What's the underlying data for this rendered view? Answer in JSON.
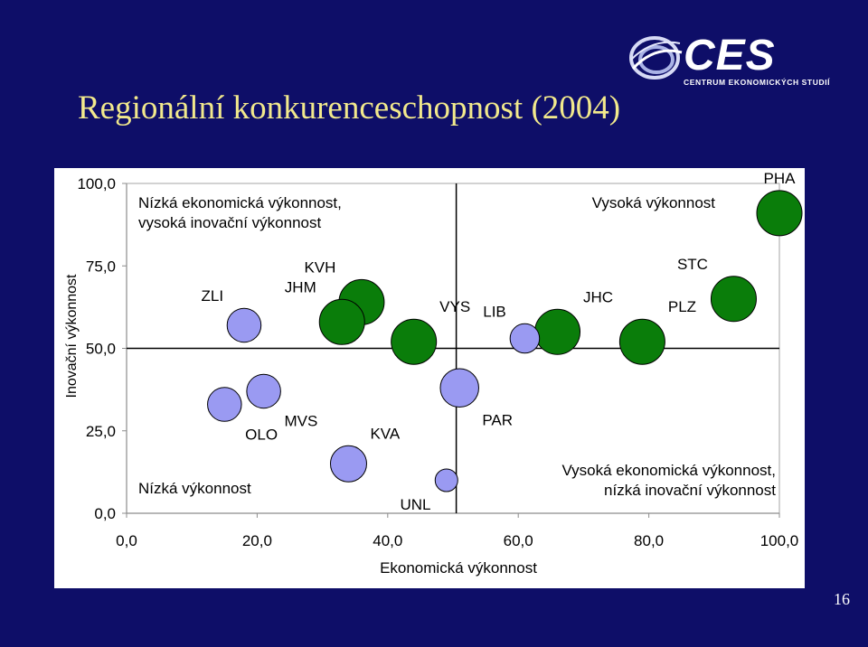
{
  "slide": {
    "title": "Regionální konkurenceschopnost (2004)",
    "page_number": "16",
    "logo": {
      "text": "CES",
      "subtitle": "CENTRUM EKONOMICKÝCH STUDIÍ"
    }
  },
  "colors": {
    "background": "#0e0e68",
    "title": "#f2e98c",
    "high_group": "#0a7d0a",
    "low_group": "#9a9af2"
  },
  "chart_data": {
    "type": "scatter",
    "title": "",
    "xlabel": "Ekonomická výkonnost",
    "ylabel": "Inovační výkonnost",
    "xlim": [
      0,
      100
    ],
    "ylim": [
      0,
      100
    ],
    "x_ticks": [
      "0,0",
      "20,0",
      "40,0",
      "60,0",
      "80,0",
      "100,0"
    ],
    "y_ticks": [
      "0,0",
      "25,0",
      "50,0",
      "75,0",
      "100,0"
    ],
    "grid": false,
    "legend": "none",
    "dividers": {
      "x": 50.5,
      "y": 50
    },
    "quadrant_labels": [
      "Nízká ekonomická výkonnost,\nvysoká inovační výkonnost",
      "Vysoká výkonnost",
      "Nízká výkonnost",
      "Vysoká ekonomická výkonnost,\nnízká inovační výkonnost"
    ],
    "points": [
      {
        "label": "PHA",
        "x": 100,
        "y": 91,
        "group": "high",
        "size": 2
      },
      {
        "label": "STC",
        "x": 93,
        "y": 65,
        "group": "high",
        "size": 2
      },
      {
        "label": "PLZ",
        "x": 79,
        "y": 52,
        "group": "high",
        "size": 2
      },
      {
        "label": "JHC",
        "x": 66,
        "y": 55,
        "group": "high",
        "size": 2
      },
      {
        "label": "LIB",
        "x": 61,
        "y": 53,
        "group": "low",
        "size": 1.3
      },
      {
        "label": "VYS",
        "x": 44,
        "y": 52,
        "group": "high",
        "size": 2
      },
      {
        "label": "KVH",
        "x": 36,
        "y": 64,
        "group": "high",
        "size": 2
      },
      {
        "label": "JHM",
        "x": 33,
        "y": 58,
        "group": "high",
        "size": 2
      },
      {
        "label": "ZLI",
        "x": 18,
        "y": 57,
        "group": "low",
        "size": 1.5
      },
      {
        "label": "MVS",
        "x": 21,
        "y": 37,
        "group": "low",
        "size": 1.5
      },
      {
        "label": "OLO",
        "x": 15,
        "y": 33,
        "group": "low",
        "size": 1.5
      },
      {
        "label": "PAR",
        "x": 51,
        "y": 38,
        "group": "low",
        "size": 1.7
      },
      {
        "label": "KVA",
        "x": 34,
        "y": 15,
        "group": "low",
        "size": 1.6
      },
      {
        "label": "UNL",
        "x": 49,
        "y": 10,
        "group": "low",
        "size": 1
      }
    ]
  }
}
